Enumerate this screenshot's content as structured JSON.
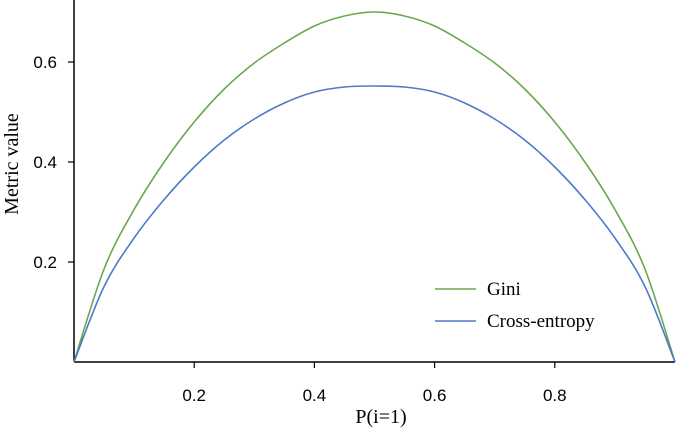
{
  "chart_data": {
    "type": "line",
    "xlabel": "P(i=1)",
    "ylabel": "Metric value",
    "xlim": [
      0,
      1
    ],
    "ylim": [
      0,
      0.7
    ],
    "xticks": [
      "0.2",
      "0.4",
      "0.6",
      "0.8"
    ],
    "yticks": [
      "0.2",
      "0.4",
      "0.6"
    ],
    "grid": false,
    "legend_position": "bottom-right",
    "x": [
      0,
      0.05,
      0.1,
      0.15,
      0.2,
      0.25,
      0.3,
      0.35,
      0.4,
      0.45,
      0.5,
      0.55,
      0.6,
      0.65,
      0.7,
      0.75,
      0.8,
      0.85,
      0.9,
      0.95,
      1
    ],
    "series": [
      {
        "name": "Gini",
        "color": "#6aa84f",
        "values": [
          0,
          0.186,
          0.305,
          0.4,
          0.48,
          0.546,
          0.598,
          0.638,
          0.672,
          0.692,
          0.7,
          0.692,
          0.672,
          0.638,
          0.598,
          0.546,
          0.48,
          0.4,
          0.305,
          0.186,
          0
        ]
      },
      {
        "name": "Cross-entropy",
        "color": "#4f7ac7",
        "values": [
          0,
          0.151,
          0.248,
          0.325,
          0.39,
          0.444,
          0.486,
          0.518,
          0.54,
          0.55,
          0.552,
          0.55,
          0.54,
          0.518,
          0.486,
          0.444,
          0.39,
          0.325,
          0.248,
          0.151,
          0
        ]
      }
    ]
  }
}
